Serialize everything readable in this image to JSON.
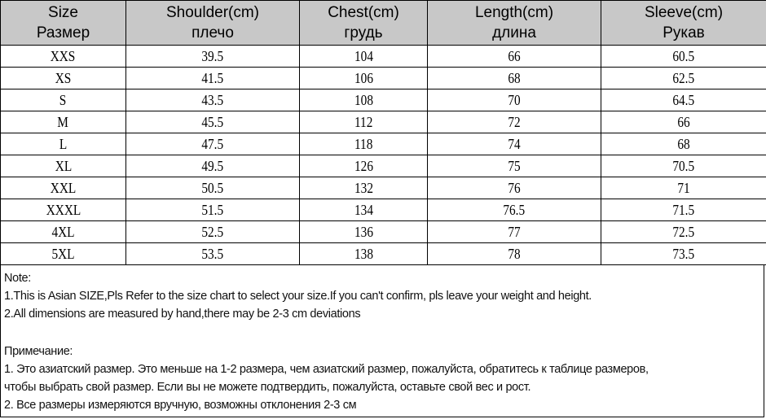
{
  "headers": [
    {
      "en": "Size",
      "ru": "Размер"
    },
    {
      "en": "Shoulder(cm)",
      "ru": "плечо"
    },
    {
      "en": "Chest(cm)",
      "ru": "грудь"
    },
    {
      "en": "Length(cm)",
      "ru": "длина"
    },
    {
      "en": "Sleeve(cm)",
      "ru": "Рукав"
    }
  ],
  "rows": [
    [
      "XXS",
      "39.5",
      "104",
      "66",
      "60.5"
    ],
    [
      "XS",
      "41.5",
      "106",
      "68",
      "62.5"
    ],
    [
      "S",
      "43.5",
      "108",
      "70",
      "64.5"
    ],
    [
      "M",
      "45.5",
      "112",
      "72",
      "66"
    ],
    [
      "L",
      "47.5",
      "118",
      "74",
      "68"
    ],
    [
      "XL",
      "49.5",
      "126",
      "75",
      "70.5"
    ],
    [
      "XXL",
      "50.5",
      "132",
      "76",
      "71"
    ],
    [
      "XXXL",
      "51.5",
      "134",
      "76.5",
      "71.5"
    ],
    [
      "4XL",
      "52.5",
      "136",
      "77",
      "72.5"
    ],
    [
      "5XL",
      "53.5",
      "138",
      "78",
      "73.5"
    ]
  ],
  "notes": {
    "en_title": "Note:",
    "en_1": "1.This is Asian SIZE,Pls Refer to the size chart to select your size.If you can't confirm, pls leave your weight and height.",
    "en_2": "2.All dimensions are measured by hand,there may be 2-3 cm deviations",
    "ru_title": "Примечание:",
    "ru_1a": "1. Это азиатский размер. Это меньше на 1-2 размера, чем азиатский размер, пожалуйста, обратитесь к таблице размеров,",
    "ru_1b": "чтобы выбрать свой размер. Если вы не можете подтвердить, пожалуйста, оставьте свой вес и рост.",
    "ru_2": "2. Все размеры измеряются вручную, возможны отклонения 2-3 см"
  },
  "colors": {
    "header_bg": "#c8c8c8",
    "border": "#000000"
  }
}
